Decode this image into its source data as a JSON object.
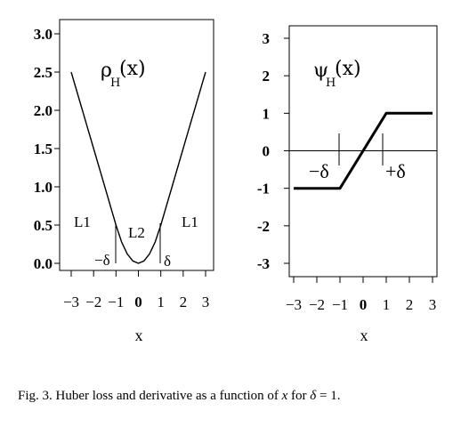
{
  "chart_data": [
    {
      "type": "line",
      "title": "",
      "function_label": "ρ",
      "function_subscript": "H",
      "function_arg": "(x)",
      "xlabel": "x",
      "ylabel": "",
      "xlim": [
        -3,
        3
      ],
      "ylim": [
        0,
        3
      ],
      "x_ticks": [
        "−3",
        "−2",
        "−1",
        "0",
        "1",
        "2",
        "3"
      ],
      "x_tick_values": [
        -3,
        -2,
        -1,
        0,
        1,
        2,
        3
      ],
      "y_ticks": [
        "0.0",
        "0.5",
        "1.0",
        "1.5",
        "2.0",
        "2.5",
        "3.0"
      ],
      "y_tick_values": [
        0,
        0.5,
        1,
        1.5,
        2,
        2.5,
        3
      ],
      "series": [
        {
          "x": [
            -3,
            -2.5,
            -2,
            -1.5,
            -1,
            -0.75,
            -0.5,
            -0.25,
            0,
            0.25,
            0.5,
            0.75,
            1,
            1.5,
            2,
            2.5,
            3
          ],
          "y": [
            2.5,
            2.0,
            1.5,
            1.0,
            0.5,
            0.28,
            0.125,
            0.031,
            0,
            0.031,
            0.125,
            0.28,
            0.5,
            1.0,
            1.5,
            2.0,
            2.5
          ]
        }
      ],
      "annotations": [
        "L1",
        "L2",
        "L1",
        "−δ",
        "δ"
      ]
    },
    {
      "type": "line",
      "title": "",
      "function_label": "ψ",
      "function_subscript": "H",
      "function_arg": "(x)",
      "xlabel": "x",
      "ylabel": "",
      "xlim": [
        -3,
        3
      ],
      "ylim": [
        -3,
        3
      ],
      "x_ticks": [
        "−3",
        "−2",
        "−1",
        "0",
        "1",
        "2",
        "3"
      ],
      "x_tick_values": [
        -3,
        -2,
        -1,
        0,
        1,
        2,
        3
      ],
      "y_ticks": [
        "-3",
        "-2",
        "-1",
        "0",
        "1",
        "2",
        "3"
      ],
      "y_tick_values": [
        -3,
        -2,
        -1,
        0,
        1,
        2,
        3
      ],
      "reference_line_y": 0,
      "series": [
        {
          "x": [
            -3,
            -1,
            1,
            3
          ],
          "y": [
            -1,
            -1,
            1,
            1
          ]
        }
      ],
      "annotations": [
        "−δ",
        "+δ"
      ]
    }
  ],
  "caption": {
    "prefix": "Fig. 3.  Huber loss and derivative as a function of ",
    "var_x": "x",
    "middle": " for ",
    "var_delta": "δ",
    "suffix": " = 1."
  }
}
